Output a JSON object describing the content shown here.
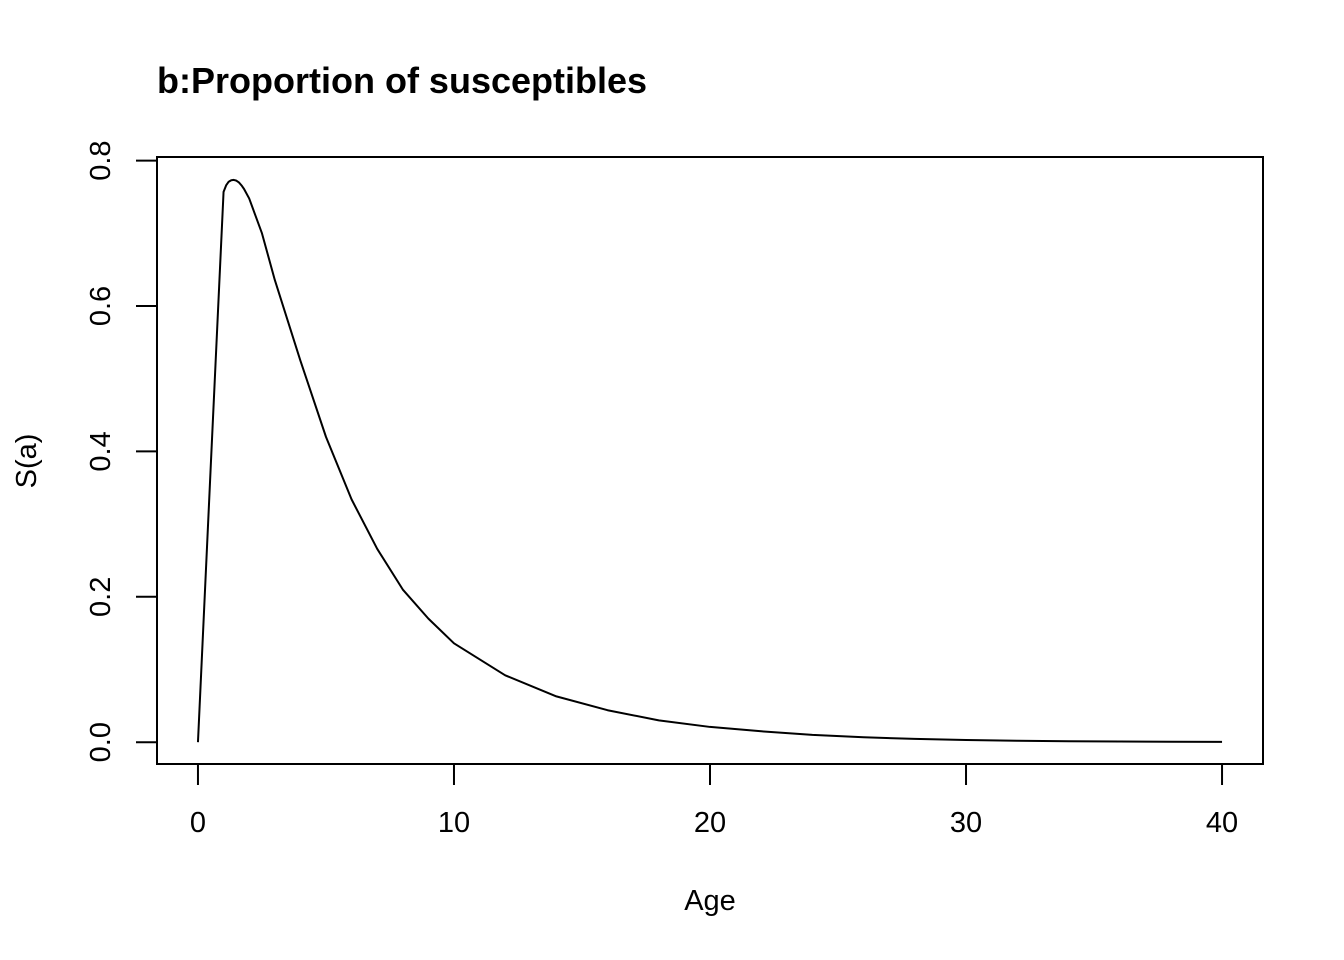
{
  "chart_data": {
    "type": "line",
    "title": "b:Proportion of susceptibles",
    "xlabel": "Age",
    "ylabel": "S(a)",
    "xlim": [
      -1.6,
      41.6
    ],
    "ylim": [
      -0.03,
      0.805
    ],
    "xticks": [
      0,
      10,
      20,
      30,
      40
    ],
    "xtick_labels": [
      "0",
      "10",
      "20",
      "30",
      "40"
    ],
    "yticks": [
      0.0,
      0.2,
      0.4,
      0.6,
      0.8
    ],
    "ytick_labels": [
      "0.0",
      "0.2",
      "0.4",
      "0.6",
      "0.8"
    ],
    "grid": false,
    "legend": "none",
    "line_color": "#000000",
    "series": [
      {
        "x": [
          0,
          0.5,
          1.0,
          1.1,
          1.2,
          1.3,
          1.4,
          1.5,
          1.6,
          1.7,
          1.8,
          2.0,
          2.5,
          3,
          4,
          5,
          6,
          7,
          8,
          9,
          10,
          12,
          14,
          16,
          18,
          20,
          22,
          24,
          26,
          28,
          30,
          32,
          34,
          36,
          38,
          40
        ],
        "y": [
          0.0,
          0.38,
          0.757,
          0.766,
          0.771,
          0.773,
          0.7735,
          0.7725,
          0.77,
          0.766,
          0.761,
          0.748,
          0.7,
          0.636,
          0.525,
          0.42,
          0.334,
          0.266,
          0.21,
          0.17,
          0.136,
          0.092,
          0.063,
          0.044,
          0.03,
          0.021,
          0.015,
          0.01,
          0.0068,
          0.0045,
          0.003,
          0.002,
          0.0013,
          0.0009,
          0.0006,
          0.0004
        ]
      }
    ]
  }
}
